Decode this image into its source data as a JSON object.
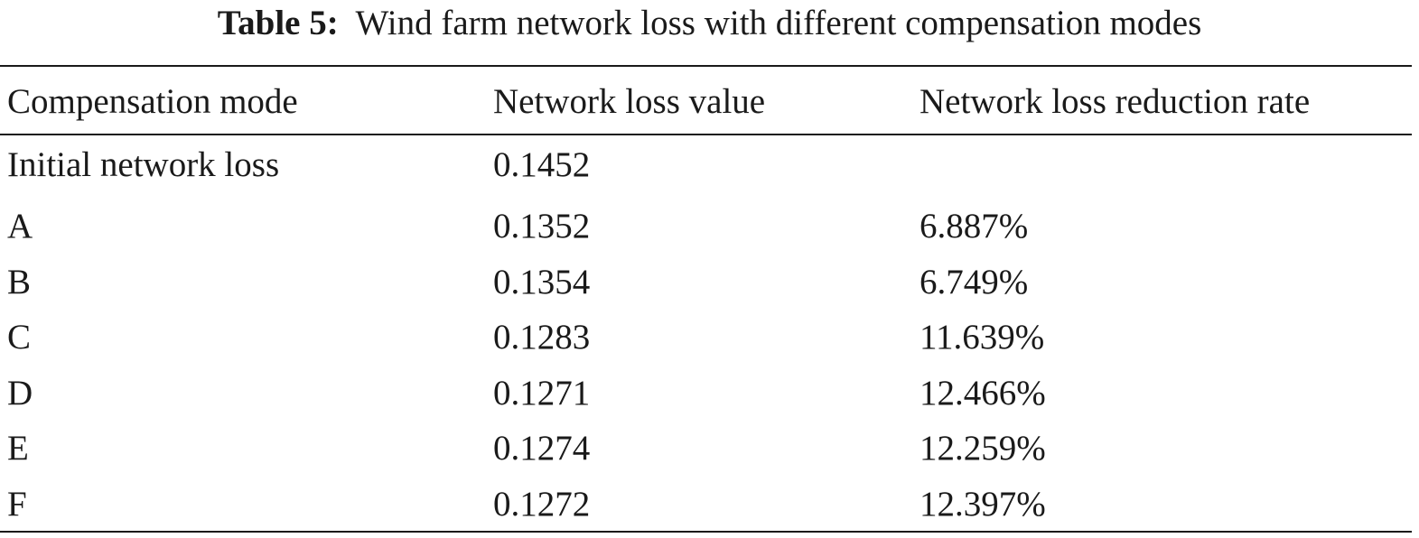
{
  "caption": {
    "label": "Table 5:",
    "text": "Wind farm network loss with different compensation modes"
  },
  "table": {
    "headers": [
      "Compensation mode",
      "Network loss value",
      "Network loss reduction rate"
    ],
    "rows": [
      [
        "Initial network loss",
        "0.1452",
        ""
      ],
      [
        "A",
        "0.1352",
        "6.887%"
      ],
      [
        "B",
        "0.1354",
        "6.749%"
      ],
      [
        "C",
        "0.1283",
        "11.639%"
      ],
      [
        "D",
        "0.1271",
        "12.466%"
      ],
      [
        "E",
        "0.1274",
        "12.259%"
      ],
      [
        "F",
        "0.1272",
        "12.397%"
      ]
    ]
  }
}
